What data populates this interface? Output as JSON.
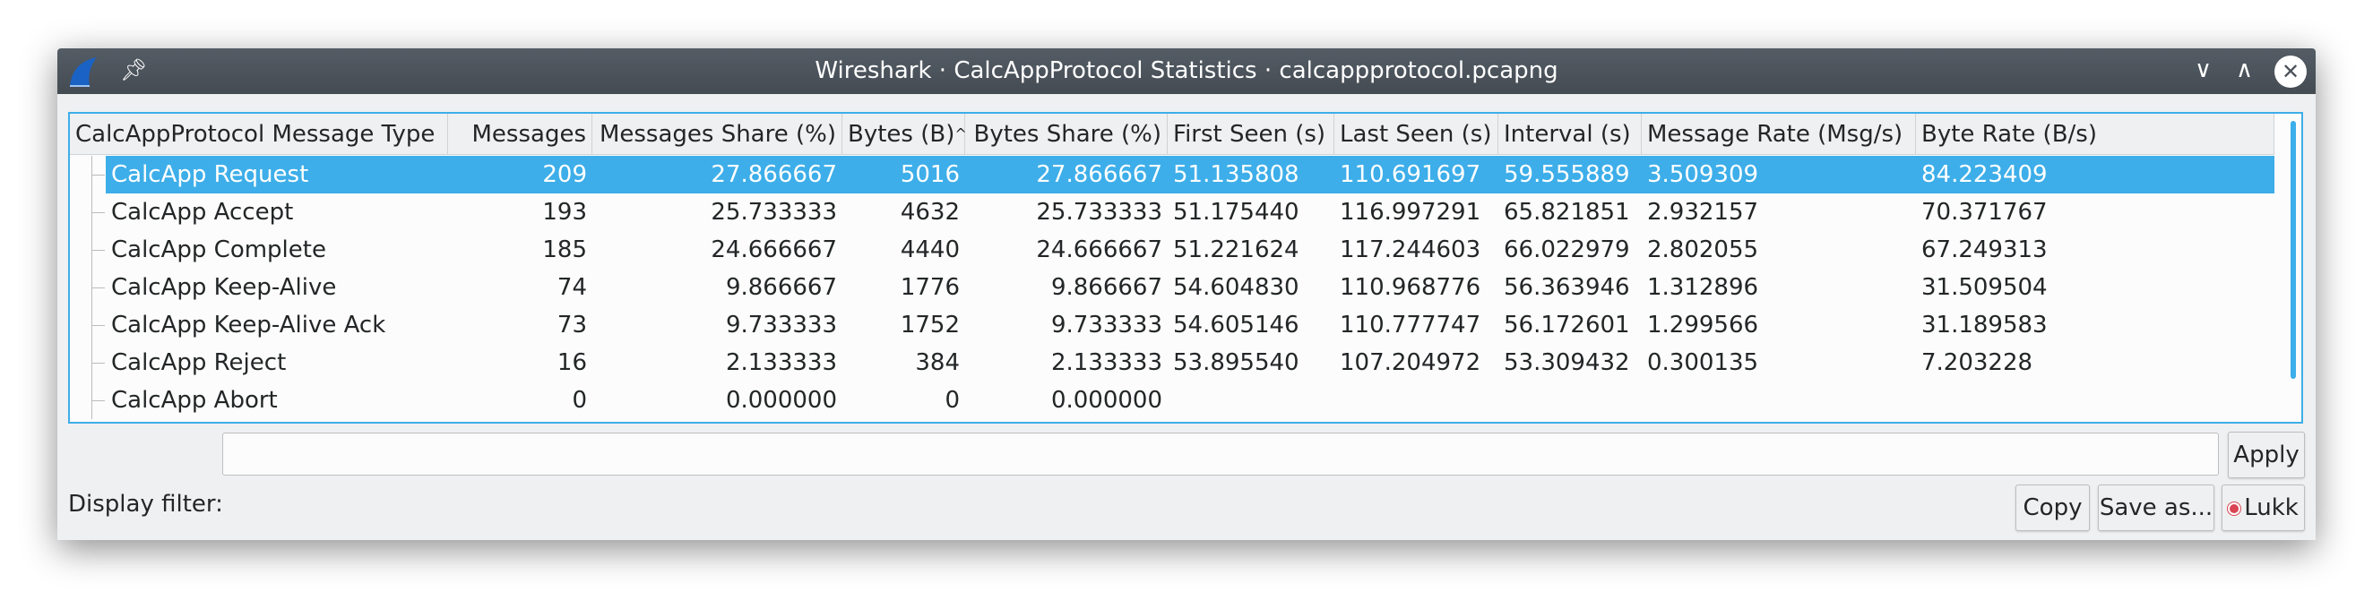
{
  "window": {
    "title": "Wireshark · CalcAppProtocol Statistics · calcappprotocol.pcapng",
    "icons": [
      "wireshark-fin-icon",
      "pin-icon",
      "minimize-icon",
      "maximize-icon",
      "close-icon"
    ]
  },
  "table": {
    "columns": [
      "CalcAppProtocol Message Type",
      "Messages",
      "Messages Share (%)",
      "Bytes (B)",
      "Bytes Share (%)",
      "First Seen (s)",
      "Last Seen (s)",
      "Interval (s)",
      "Message Rate (Msg/s)",
      "Byte Rate (B/s)"
    ],
    "sort_column": "Bytes (B)",
    "sort_indicator": "^",
    "rows": [
      [
        "CalcApp Request",
        "209",
        "27.866667",
        "5016",
        "27.866667",
        "51.135808",
        "110.691697",
        "59.555889",
        "3.509309",
        "84.223409"
      ],
      [
        "CalcApp Accept",
        "193",
        "25.733333",
        "4632",
        "25.733333",
        "51.175440",
        "116.997291",
        "65.821851",
        "2.932157",
        "70.371767"
      ],
      [
        "CalcApp Complete",
        "185",
        "24.666667",
        "4440",
        "24.666667",
        "51.221624",
        "117.244603",
        "66.022979",
        "2.802055",
        "67.249313"
      ],
      [
        "CalcApp Keep-Alive",
        "74",
        "9.866667",
        "1776",
        "9.866667",
        "54.604830",
        "110.968776",
        "56.363946",
        "1.312896",
        "31.509504"
      ],
      [
        "CalcApp Keep-Alive Ack",
        "73",
        "9.733333",
        "1752",
        "9.733333",
        "54.605146",
        "110.777747",
        "56.172601",
        "1.299566",
        "31.189583"
      ],
      [
        "CalcApp Reject",
        "16",
        "2.133333",
        "384",
        "2.133333",
        "53.895540",
        "107.204972",
        "53.309432",
        "0.300135",
        "7.203228"
      ],
      [
        "CalcApp Abort",
        "0",
        "0.000000",
        "0",
        "0.000000",
        "",
        "",
        "",
        "",
        ""
      ]
    ],
    "selected_row": 0
  },
  "filter": {
    "label": "Display filter:",
    "value": "",
    "apply": "Apply"
  },
  "buttons": {
    "copy": "Copy",
    "save": "Save as...",
    "close": "Lukk"
  },
  "colors": {
    "accent": "#3daee9",
    "titlebar": "#4a5159"
  }
}
